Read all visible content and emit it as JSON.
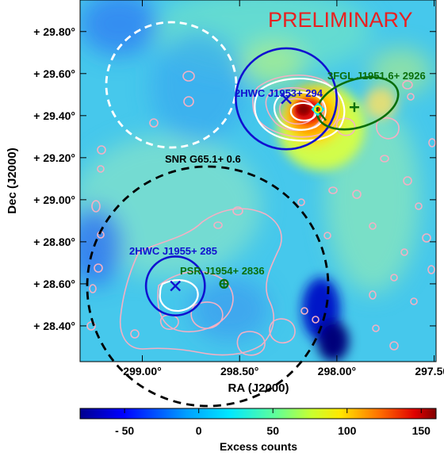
{
  "chart_data": {
    "type": "heatmap",
    "title": "",
    "watermark": "PRELIMINARY",
    "xlabel": "RA (J2000)",
    "ylabel": "Dec (J2000)",
    "x_ticks": [
      "299.00°",
      "298.50°",
      "298.00°",
      "297.50°"
    ],
    "y_ticks": [
      "+ 29.80°",
      "+ 29.60°",
      "+ 29.40°",
      "+ 29.20°",
      "+ 29.00°",
      "+ 28.80°",
      "+ 28.60°",
      "+ 28.40°"
    ],
    "x_tick_values": [
      299.0,
      298.5,
      298.0,
      297.5
    ],
    "y_tick_values": [
      29.8,
      29.6,
      29.4,
      29.2,
      29.0,
      28.8,
      28.6,
      28.4
    ],
    "xlim": [
      299.32,
      297.49
    ],
    "ylim": [
      28.23,
      29.95
    ],
    "colorbar": {
      "label": "Excess counts",
      "range": [
        -80,
        160
      ],
      "ticks": [
        "- 50",
        "0",
        "50",
        "100",
        "150"
      ],
      "tick_values": [
        -50,
        0,
        50,
        100,
        150
      ]
    },
    "sources": [
      {
        "name": "2HWC J1953+ 294",
        "type": "hawc",
        "ra": 298.26,
        "dec": 29.48,
        "radius_deg": 0.24,
        "color": "#1010d0"
      },
      {
        "name": "2HWC J1955+ 285",
        "type": "hawc",
        "ra": 298.83,
        "dec": 28.59,
        "radius_deg": 0.14,
        "color": "#1010d0"
      },
      {
        "name": "3FGL J1951.6+ 2926",
        "type": "fermi",
        "ra": 297.91,
        "dec": 29.44,
        "color": "#0a6e0a"
      },
      {
        "name": "PSR J1954+ 2836",
        "type": "psr",
        "ra": 298.58,
        "dec": 28.6,
        "color": "#0a6e0a"
      },
      {
        "name": "SNR G65.1+ 0.6",
        "type": "snr",
        "ra": 298.65,
        "dec": 28.58,
        "radius_deg": 0.5,
        "color": "#000000"
      }
    ],
    "hotspot_peak": {
      "ra": 298.04,
      "dec": 29.43,
      "value": 150
    }
  }
}
